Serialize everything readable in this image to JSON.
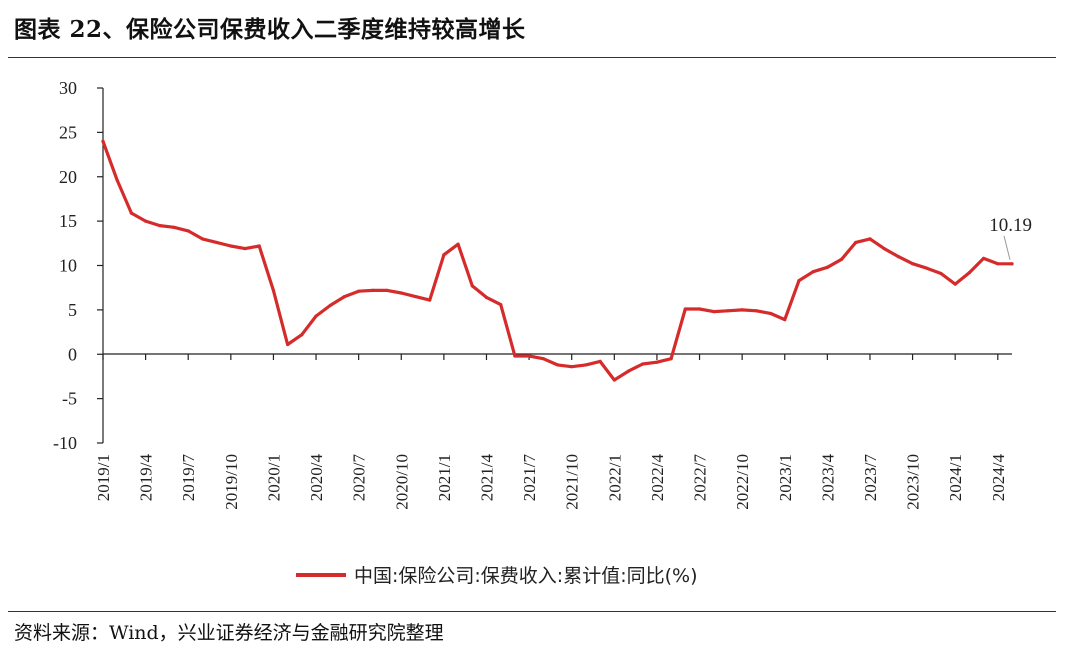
{
  "title": "图表 22、保险公司保费收入二季度维持较高增长",
  "source": "资料来源：Wind，兴业证券经济与金融研究院整理",
  "colors": {
    "series": "#d62b2b",
    "axis": "#222222"
  },
  "chart_data": {
    "type": "line",
    "ylim": [
      -10,
      30
    ],
    "yticks": [
      30,
      25,
      20,
      15,
      10,
      5,
      0,
      -5,
      -10
    ],
    "xtick_labels": [
      "2019/1",
      "2019/4",
      "2019/7",
      "2019/10",
      "2020/1",
      "2020/4",
      "2020/7",
      "2020/10",
      "2021/1",
      "2021/4",
      "2021/7",
      "2021/10",
      "2022/1",
      "2022/4",
      "2022/7",
      "2022/10",
      "2023/1",
      "2023/4",
      "2023/7",
      "2023/10",
      "2024/1",
      "2024/4"
    ],
    "series": [
      {
        "name": "中国:保险公司:保费收入:累计值:同比(%)",
        "color": "#d62b2b",
        "x": [
          "2019/1",
          "2019/2",
          "2019/3",
          "2019/4",
          "2019/5",
          "2019/6",
          "2019/7",
          "2019/8",
          "2019/9",
          "2019/10",
          "2019/11",
          "2019/12",
          "2020/1",
          "2020/2",
          "2020/3",
          "2020/4",
          "2020/5",
          "2020/6",
          "2020/7",
          "2020/8",
          "2020/9",
          "2020/10",
          "2020/11",
          "2020/12",
          "2021/1",
          "2021/2",
          "2021/3",
          "2021/4",
          "2021/5",
          "2021/6",
          "2021/7",
          "2021/8",
          "2021/9",
          "2021/10",
          "2021/11",
          "2021/12",
          "2022/1",
          "2022/2",
          "2022/3",
          "2022/4",
          "2022/5",
          "2022/6",
          "2022/7",
          "2022/8",
          "2022/9",
          "2022/10",
          "2022/11",
          "2022/12",
          "2023/1",
          "2023/2",
          "2023/3",
          "2023/4",
          "2023/5",
          "2023/6",
          "2023/7",
          "2023/8",
          "2023/9",
          "2023/10",
          "2023/11",
          "2023/12",
          "2024/1",
          "2024/2",
          "2024/3",
          "2024/4",
          "2024/5"
        ],
        "values": [
          24.0,
          19.6,
          15.9,
          15.0,
          14.5,
          14.3,
          13.9,
          13.0,
          12.6,
          12.2,
          11.9,
          12.2,
          7.2,
          1.1,
          2.2,
          4.3,
          5.5,
          6.5,
          7.1,
          7.2,
          7.2,
          6.9,
          6.5,
          6.1,
          11.2,
          12.4,
          7.7,
          6.4,
          5.6,
          -0.2,
          -0.2,
          -0.5,
          -1.2,
          -1.4,
          -1.2,
          -0.8,
          -2.9,
          -1.9,
          -1.1,
          -0.9,
          -0.5,
          5.1,
          5.1,
          4.8,
          4.9,
          5.0,
          4.9,
          4.6,
          3.9,
          8.3,
          9.3,
          9.8,
          10.7,
          12.6,
          13.0,
          11.9,
          11.0,
          10.2,
          9.7,
          9.1,
          7.9,
          9.2,
          10.8,
          10.2,
          10.19
        ]
      }
    ],
    "annotation": {
      "text": "10.19",
      "x": "2024/5",
      "y": 10.19
    },
    "legend": {
      "position": "bottom"
    },
    "grid": false
  }
}
